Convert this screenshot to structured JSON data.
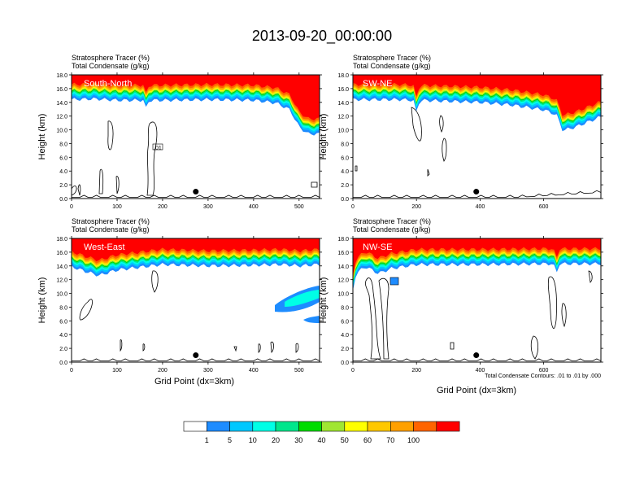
{
  "title": "2013-09-20_00:00:00",
  "colors": {
    "levels": [
      "#ffffff",
      "#1e8cff",
      "#00c8ff",
      "#00ffe6",
      "#00e68c",
      "#00dc00",
      "#a0e632",
      "#ffff00",
      "#ffc800",
      "#ffa000",
      "#ff6400",
      "#ff0000"
    ],
    "contour": "#000000"
  },
  "chart_data": [
    {
      "type": "heatmap",
      "panel_label": "South-North",
      "header_line1": "Stratosphere Tracer   (%)",
      "header_line2": "Total Condensate   (g/kg)",
      "ylabel": "Height (km)",
      "xlabel": "",
      "xlim": [
        0,
        545
      ],
      "ylim": [
        0,
        18
      ],
      "xticks": [
        "0",
        "100",
        "200",
        "300",
        "400",
        "500"
      ],
      "yticks": [
        "0.0",
        "2.0",
        "4.0",
        "6.0",
        "8.0",
        "10.0",
        "12.0",
        "14.0",
        "16.0",
        "18.0"
      ],
      "tracer_front": {
        "x": [
          0,
          50,
          100,
          160,
          165,
          170,
          200,
          300,
          400,
          450,
          480,
          500,
          520,
          545
        ],
        "base_km": [
          14.0,
          14.1,
          13.9,
          13.9,
          12.2,
          13.9,
          13.9,
          14.0,
          13.9,
          13.5,
          12.5,
          10.0,
          9.0,
          9.0
        ]
      },
      "tracer_level_spacing_km": [
        0.4,
        0.75,
        1.05,
        1.3,
        1.5,
        1.65,
        1.8,
        1.95,
        2.1,
        2.3,
        2.6
      ],
      "contour_label": ".01",
      "marker_x": 273,
      "marker_km": 1.0
    },
    {
      "type": "heatmap",
      "panel_label": "SW-NE",
      "header_line1": "Stratosphere Tracer   (%)",
      "header_line2": "Total Condensate   (g/kg)",
      "ylabel": "Height (km)",
      "xlabel": "",
      "xlim": [
        0,
        780
      ],
      "ylim": [
        0,
        18
      ],
      "xticks": [
        "0",
        "200",
        "400",
        "600"
      ],
      "yticks": [
        "0.0",
        "2.0",
        "4.0",
        "6.0",
        "8.0",
        "10.0",
        "12.0",
        "14.0",
        "16.0",
        "18.0"
      ],
      "tracer_front": {
        "x": [
          0,
          150,
          190,
          200,
          210,
          400,
          500,
          600,
          640,
          660,
          700,
          780
        ],
        "base_km": [
          14.0,
          14.0,
          13.9,
          12.0,
          13.9,
          13.6,
          13.2,
          12.5,
          11.8,
          9.5,
          10.0,
          11.5
        ]
      },
      "tracer_level_spacing_km": [
        0.4,
        0.75,
        1.05,
        1.3,
        1.5,
        1.65,
        1.8,
        1.95,
        2.1,
        2.3,
        2.6
      ],
      "contour_label": "",
      "marker_x": 388,
      "marker_km": 1.0
    },
    {
      "type": "heatmap",
      "panel_label": "West-East",
      "header_line1": "Stratosphere Tracer   (%)",
      "header_line2": "Total Condensate   (g/kg)",
      "ylabel": "Height (km)",
      "xlabel": "Grid Point (dx=3km)",
      "xlim": [
        0,
        545
      ],
      "ylim": [
        0,
        18
      ],
      "xticks": [
        "0",
        "100",
        "200",
        "300",
        "400",
        "500"
      ],
      "yticks": [
        "0.0",
        "2.0",
        "4.0",
        "6.0",
        "8.0",
        "10.0",
        "12.0",
        "14.0",
        "16.0",
        "18.0"
      ],
      "tracer_front": {
        "x": [
          0,
          30,
          60,
          100,
          200,
          300,
          400,
          460,
          500,
          545
        ],
        "base_km": [
          13.5,
          12.8,
          12.2,
          13.0,
          13.8,
          13.6,
          13.7,
          13.8,
          13.6,
          13.8
        ]
      },
      "tracer_level_spacing_km": [
        0.4,
        0.75,
        1.05,
        1.3,
        1.5,
        1.65,
        1.8,
        1.95,
        2.1,
        2.3,
        2.6
      ],
      "contour_label": "",
      "marker_x": 273,
      "marker_km": 1.0
    },
    {
      "type": "heatmap",
      "panel_label": "NW-SE",
      "header_line1": "Stratosphere Tracer   (%)",
      "header_line2": "Total Condensate   (g/kg)",
      "ylabel": "Height (km)",
      "xlabel": "Grid Point (dx=3km)",
      "xlim": [
        0,
        780
      ],
      "ylim": [
        0,
        18
      ],
      "xticks": [
        "0",
        "200",
        "400",
        "600"
      ],
      "yticks": [
        "0.0",
        "2.0",
        "4.0",
        "6.0",
        "8.0",
        "10.0",
        "12.0",
        "14.0",
        "16.0",
        "18.0"
      ],
      "tracer_front": {
        "x": [
          0,
          10,
          40,
          80,
          120,
          200,
          400,
          600,
          630,
          640,
          650,
          780
        ],
        "base_km": [
          10.0,
          12.5,
          13.5,
          12.5,
          13.2,
          13.8,
          13.8,
          13.9,
          13.9,
          12.5,
          13.9,
          13.9
        ]
      },
      "tracer_level_spacing_km": [
        0.4,
        0.75,
        1.05,
        1.3,
        1.5,
        1.65,
        1.8,
        1.95,
        2.1,
        2.3,
        2.6
      ],
      "contour_label": "",
      "marker_x": 388,
      "marker_km": 1.0,
      "footnote": "Total Condensate Contours: .01 to .01 by .000"
    }
  ],
  "colorbar": {
    "labels": [
      "1",
      "5",
      "10",
      "20",
      "30",
      "40",
      "50",
      "60",
      "70",
      "100"
    ]
  }
}
